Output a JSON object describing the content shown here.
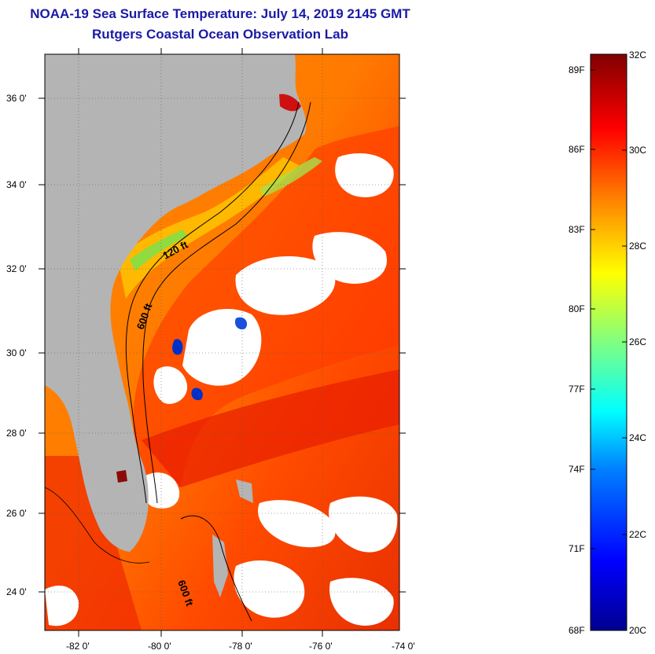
{
  "header": {
    "title": "NOAA-19 Sea Surface Temperature:  July 14, 2019 2145 GMT",
    "subtitle": "Rutgers Coastal Ocean Observation Lab"
  },
  "map": {
    "lat_labels": [
      "36 0'",
      "34 0'",
      "32 0'",
      "30 0'",
      "28 0'",
      "26 0'",
      "24 0'"
    ],
    "lon_labels": [
      "-82 0'",
      "-80 0'",
      "-78 0'",
      "-76 0'",
      "-74 0'"
    ],
    "contour_labels": [
      "120 ft",
      "600 ft",
      "600 ft"
    ]
  },
  "colorbar": {
    "fahrenheit_labels": [
      "89F",
      "86F",
      "83F",
      "80F",
      "77F",
      "74F",
      "71F",
      "68F"
    ],
    "celsius_labels": [
      "32C",
      "30C",
      "28C",
      "26C",
      "24C",
      "22C",
      "20C"
    ],
    "range_c": [
      20,
      32
    ]
  },
  "colors": {
    "title": "#1a1aa6",
    "land": "#b4b4b4",
    "cloud": "#ffffff"
  }
}
